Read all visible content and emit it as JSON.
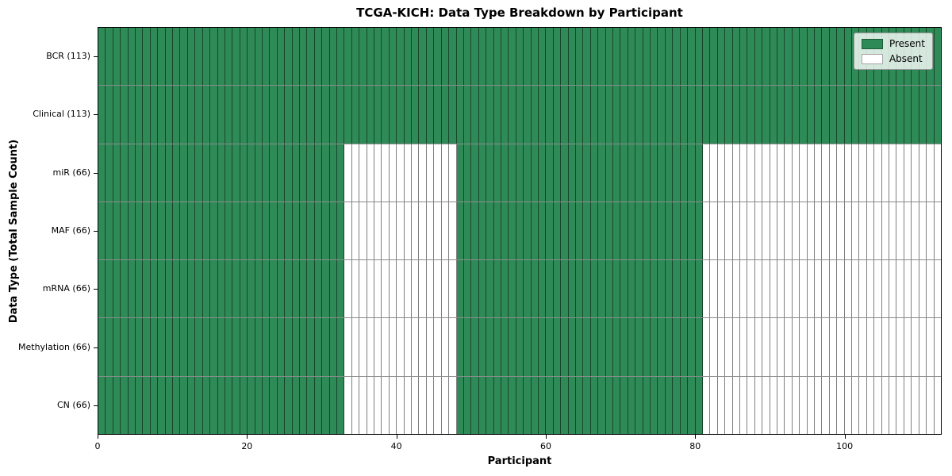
{
  "figure": {
    "title": "TCGA-KICH: Data Type Breakdown by Participant",
    "xlabel": "Participant",
    "ylabel": "Data Type (Total Sample Count)"
  },
  "legend": {
    "items": [
      {
        "label": "Present",
        "color": "#2e8b57"
      },
      {
        "label": "Absent",
        "color": "#ffffff"
      }
    ]
  },
  "chart_data": {
    "type": "heatmap",
    "title": "TCGA-KICH: Data Type Breakdown by Participant",
    "xlabel": "Participant",
    "ylabel": "Data Type (Total Sample Count)",
    "n_participants": 113,
    "x_ticks": [
      0,
      20,
      40,
      60,
      80,
      100
    ],
    "colors": {
      "present": "#2e8b57",
      "absent": "#ffffff"
    },
    "legend_position": "upper right",
    "grid": false,
    "rows": [
      {
        "label": "BCR (113)",
        "data_type": "BCR",
        "total_samples": 113,
        "present_ranges": [
          [
            0,
            113
          ]
        ]
      },
      {
        "label": "Clinical (113)",
        "data_type": "Clinical",
        "total_samples": 113,
        "present_ranges": [
          [
            0,
            113
          ]
        ]
      },
      {
        "label": "miR (66)",
        "data_type": "miR",
        "total_samples": 66,
        "present_ranges": [
          [
            0,
            33
          ],
          [
            48,
            81
          ]
        ]
      },
      {
        "label": "MAF (66)",
        "data_type": "MAF",
        "total_samples": 66,
        "present_ranges": [
          [
            0,
            33
          ],
          [
            48,
            81
          ]
        ]
      },
      {
        "label": "mRNA (66)",
        "data_type": "mRNA",
        "total_samples": 66,
        "present_ranges": [
          [
            0,
            33
          ],
          [
            48,
            81
          ]
        ]
      },
      {
        "label": "Methylation (66)",
        "data_type": "Methylation",
        "total_samples": 66,
        "present_ranges": [
          [
            0,
            33
          ],
          [
            48,
            81
          ]
        ]
      },
      {
        "label": "CN (66)",
        "data_type": "CN",
        "total_samples": 66,
        "present_ranges": [
          [
            0,
            33
          ],
          [
            48,
            81
          ]
        ]
      }
    ]
  }
}
